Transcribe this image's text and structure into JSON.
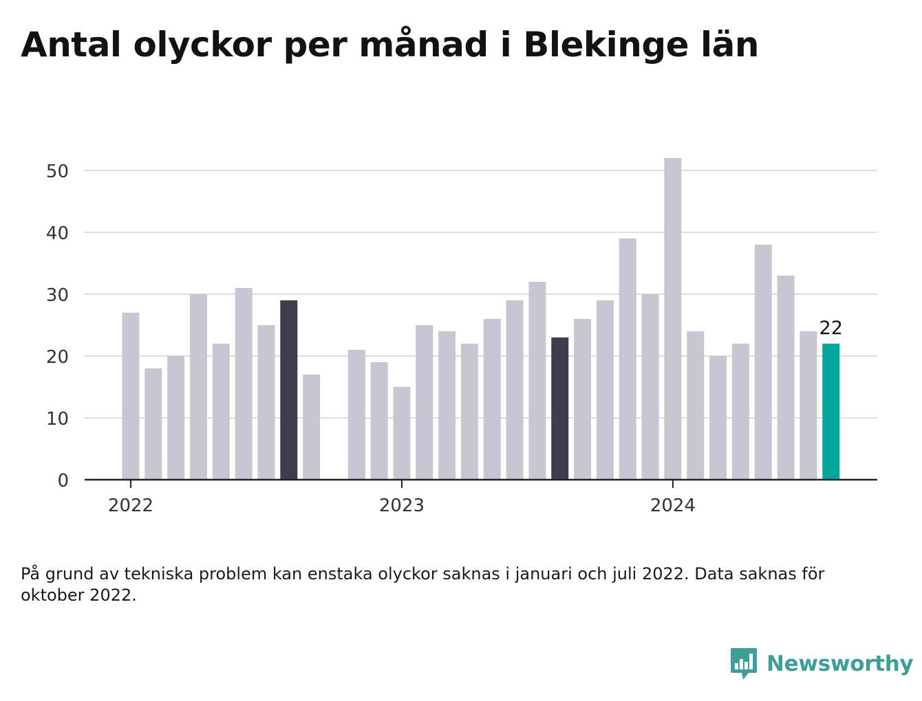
{
  "title": "Antal olyckor per månad i Blekinge län",
  "note": "På grund av tekniska problem kan enstaka olyckor saknas i januari och juli 2022. Data saknas för oktober 2022.",
  "brand": {
    "name": "Newsworthy",
    "icon": "newsworthy-logo-icon",
    "color": "#3e9e98"
  },
  "colors": {
    "default": "#c8c6d2",
    "highlight": "#403e4d",
    "latest": "#00a69c",
    "axis": "#222222",
    "grid": "#dddddd"
  },
  "chart_data": {
    "type": "bar",
    "title": "Antal olyckor per månad i Blekinge län",
    "xlabel": "",
    "ylabel": "",
    "ylim": [
      0,
      53
    ],
    "yticks": [
      0,
      10,
      20,
      30,
      40,
      50
    ],
    "xticks": [
      {
        "label": "2022",
        "month": "2022-01"
      },
      {
        "label": "2023",
        "month": "2023-01"
      },
      {
        "label": "2024",
        "month": "2024-01"
      }
    ],
    "grid": true,
    "months": [
      "2022-01",
      "2022-02",
      "2022-03",
      "2022-04",
      "2022-05",
      "2022-06",
      "2022-07",
      "2022-08",
      "2022-09",
      "2022-10",
      "2022-11",
      "2022-12",
      "2023-01",
      "2023-02",
      "2023-03",
      "2023-04",
      "2023-05",
      "2023-06",
      "2023-07",
      "2023-08",
      "2023-09",
      "2023-10",
      "2023-11",
      "2023-12",
      "2024-01",
      "2024-02",
      "2024-03",
      "2024-04",
      "2024-05",
      "2024-06",
      "2024-07",
      "2024-08"
    ],
    "values": [
      27,
      18,
      20,
      30,
      22,
      31,
      25,
      29,
      17,
      null,
      21,
      19,
      15,
      25,
      24,
      22,
      26,
      29,
      32,
      23,
      26,
      29,
      39,
      30,
      52,
      24,
      20,
      22,
      38,
      33,
      24,
      22
    ],
    "highlight_months": [
      "2022-08",
      "2023-08"
    ],
    "latest_month": "2024-08",
    "data_labels": [
      {
        "month": "2024-08",
        "text": "22"
      }
    ]
  }
}
